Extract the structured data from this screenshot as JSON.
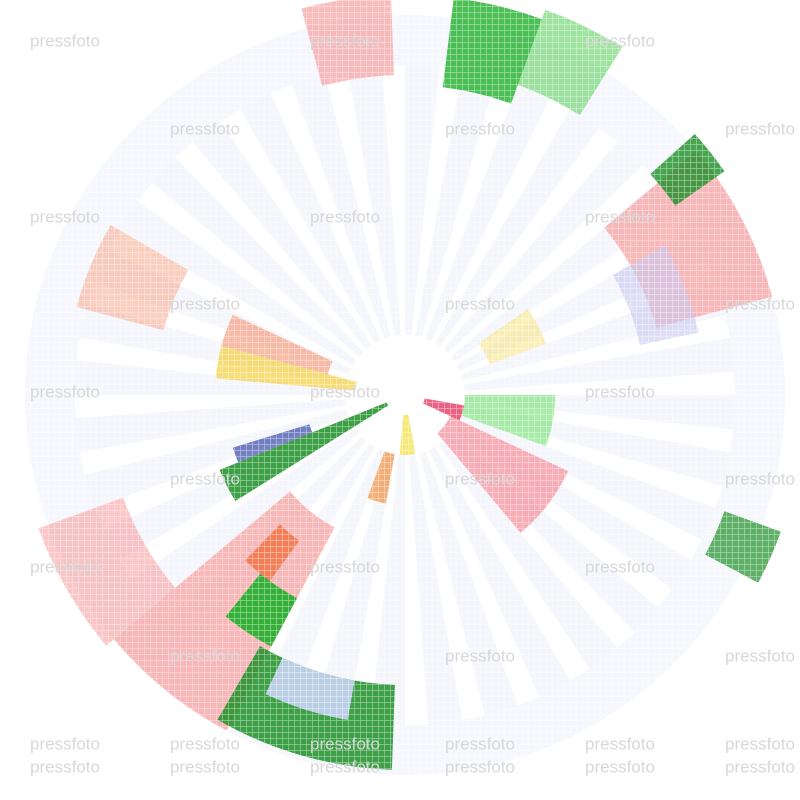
{
  "watermark": "pressfoto"
}
